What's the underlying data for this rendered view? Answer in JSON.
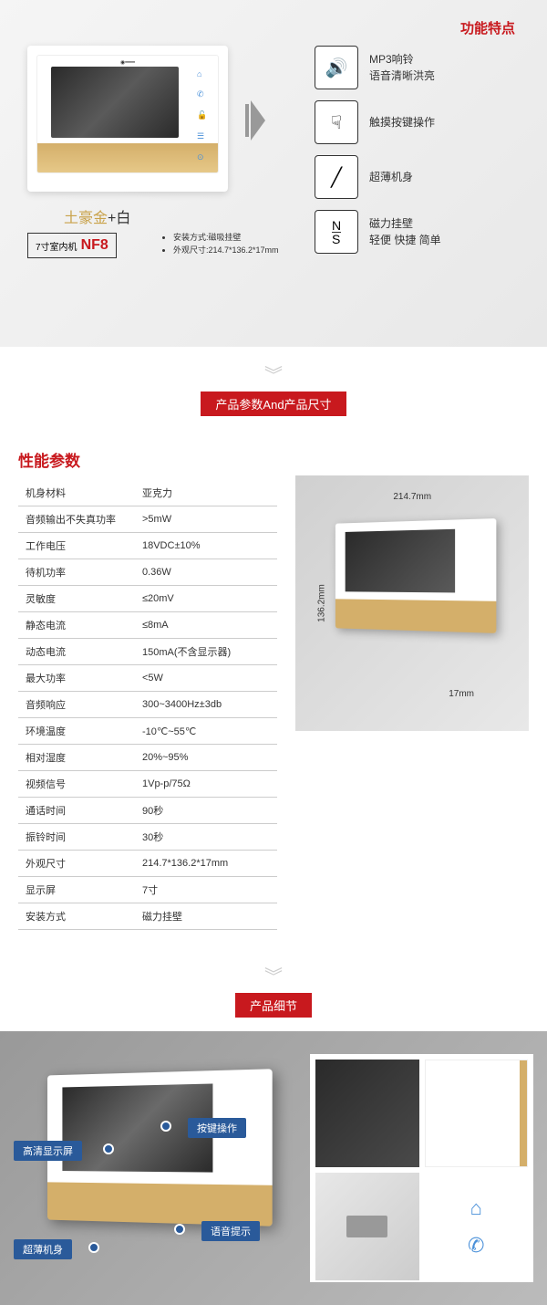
{
  "section1": {
    "title": "功能特点",
    "product_color": "土豪金",
    "product_plus": "+",
    "product_white": "白",
    "model_prefix": "7寸室内机",
    "model": "NF8",
    "install_method": "安装方式:磁吸挂壁",
    "dimensions": "外观尺寸:214.7*136.2*17mm",
    "features": [
      {
        "icon": "🔊",
        "line1": "MP3响铃",
        "line2": "语音清晰洪亮"
      },
      {
        "icon": "✎",
        "line1": "触摸按键操作",
        "line2": ""
      },
      {
        "icon": "╱",
        "line1": "超薄机身",
        "line2": ""
      },
      {
        "icon": "NS",
        "line1": "磁力挂壁",
        "line2": "轻便 快捷 简单"
      }
    ]
  },
  "divider1": {
    "title": "产品参数And产品尺寸"
  },
  "section2": {
    "spec_title": "性能参数",
    "specs": [
      [
        "机身材料",
        "亚克力"
      ],
      [
        "音频输出不失真功率",
        ">5mW"
      ],
      [
        "工作电压",
        "18VDC±10%"
      ],
      [
        "待机功率",
        "0.36W"
      ],
      [
        "灵敏度",
        "≤20mV"
      ],
      [
        "静态电流",
        "≤8mA"
      ],
      [
        "动态电流",
        "150mA(不含显示器)"
      ],
      [
        "最大功率",
        "<5W"
      ],
      [
        "音频响应",
        "300~3400Hz±3db"
      ],
      [
        "环境温度",
        "-10℃~55℃"
      ],
      [
        "相对湿度",
        "20%~95%"
      ],
      [
        "视频信号",
        "1Vp-p/75Ω"
      ],
      [
        "通话时间",
        "90秒"
      ],
      [
        "振铃时间",
        "30秒"
      ],
      [
        "外观尺寸",
        "214.7*136.2*17mm"
      ],
      [
        "显示屏",
        "7寸"
      ],
      [
        "安装方式",
        "磁力挂壁"
      ]
    ],
    "dim_width": "214.7mm",
    "dim_height": "136.2mm",
    "dim_depth": "17mm"
  },
  "divider2": {
    "title": "产品细节"
  },
  "section3": {
    "callouts": {
      "c1": "高清显示屏",
      "c2": "超薄机身",
      "c3": "按键操作",
      "c4": "语音提示"
    }
  },
  "colors": {
    "accent_red": "#c8191e",
    "gold": "#d4af6a",
    "callout_blue": "#2a5a9a",
    "icon_blue": "#4a90d9"
  }
}
